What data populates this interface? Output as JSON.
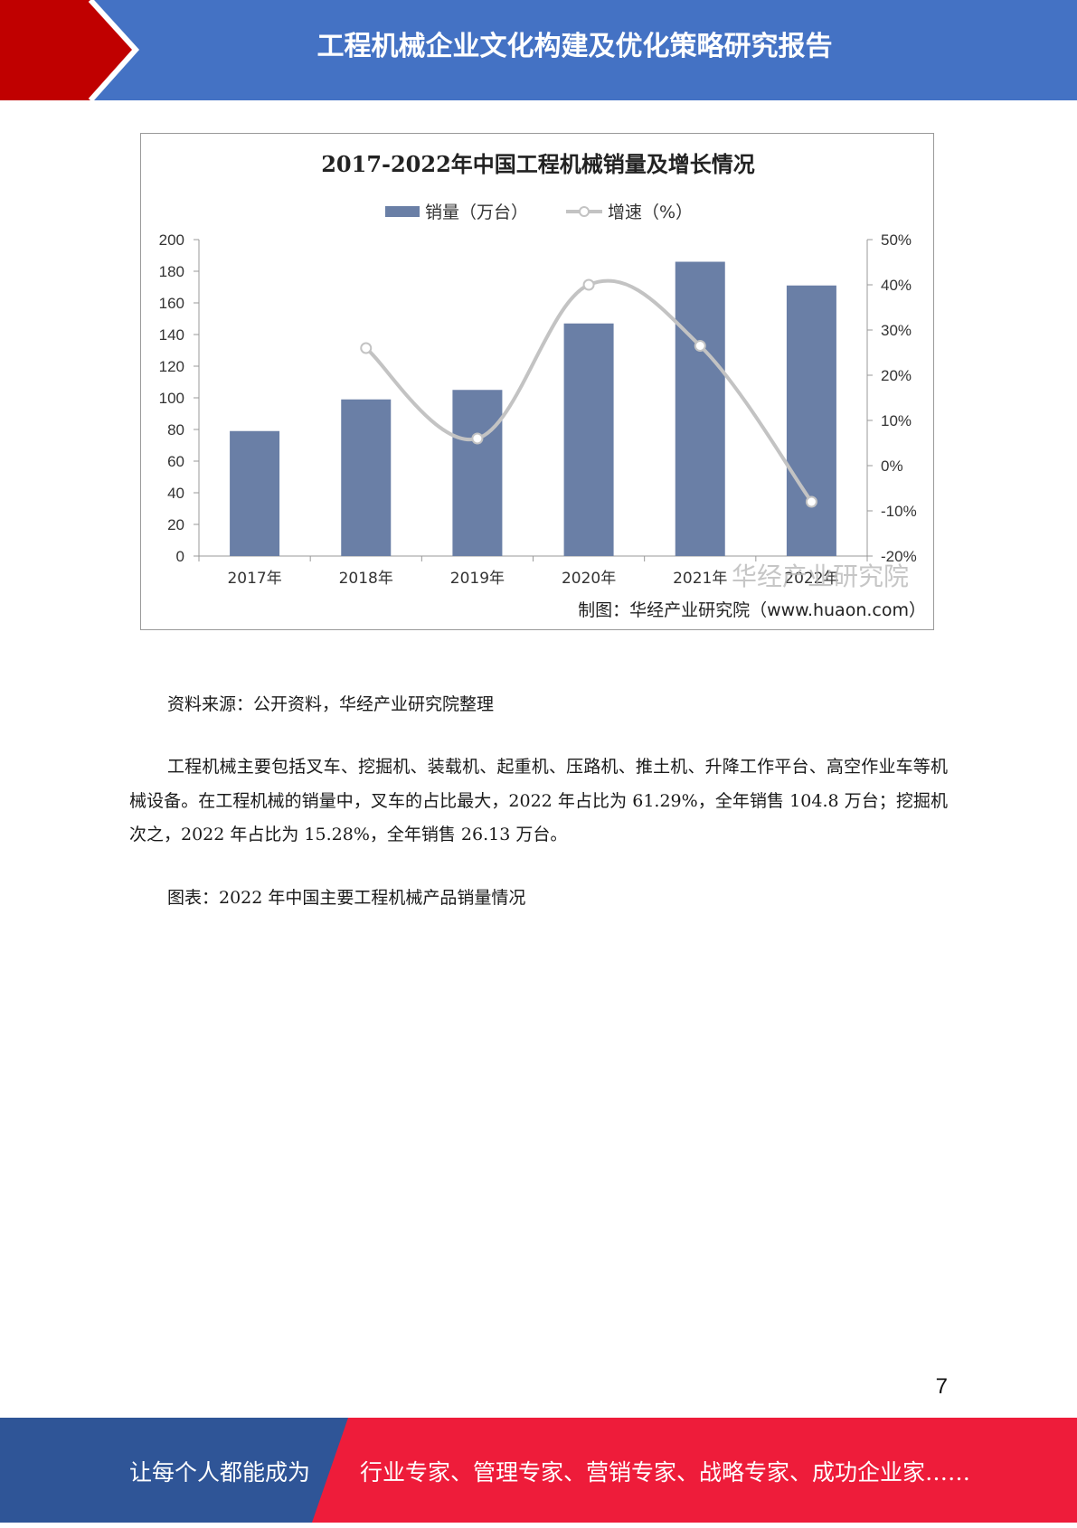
{
  "header": {
    "title": "工程机械企业文化构建及优化策略研究报告"
  },
  "chart_data": {
    "type": "bar",
    "title": "2017-2022年中国工程机械销量及增长情况",
    "categories": [
      "2017年",
      "2018年",
      "2019年",
      "2020年",
      "2021年",
      "2022年"
    ],
    "series": [
      {
        "name": "销量（万台）",
        "type": "bar",
        "axis": "left",
        "color": "#6a7fa6",
        "values": [
          79,
          99,
          105,
          147,
          186,
          171
        ]
      },
      {
        "name": "增速（%）",
        "type": "line",
        "axis": "right",
        "color": "#c3c3c3",
        "values": [
          null,
          26,
          6,
          40,
          26.5,
          -8
        ]
      }
    ],
    "y_left": {
      "min": 0,
      "max": 200,
      "ticks": [
        "0",
        "20",
        "40",
        "60",
        "80",
        "100",
        "120",
        "140",
        "160",
        "180",
        "200"
      ]
    },
    "y_right": {
      "min": -20,
      "max": 50,
      "ticks": [
        "-20%",
        "-10%",
        "0%",
        "10%",
        "20%",
        "30%",
        "40%",
        "50%"
      ]
    },
    "legend_position": "top",
    "grid": false,
    "watermark": "华经产业研究院",
    "credit": "制图：华经产业研究院（www.huaon.com）"
  },
  "text": {
    "source": "资料来源：公开资料，华经产业研究院整理",
    "body": "工程机械主要包括叉车、挖掘机、装载机、起重机、压路机、推土机、升降工作平台、高空作业车等机械设备。在工程机械的销量中，叉车的占比最大，2022 年占比为 61.29%，全年销售 104.8 万台；挖掘机次之，2022 年占比为 15.28%，全年销售 26.13 万台。",
    "figure_caption": "图表：2022 年中国主要工程机械产品销量情况"
  },
  "page_number": "7",
  "footer": {
    "left": "让每个人都能成为",
    "right": "行业专家、管理专家、营销专家、战略专家、成功企业家……"
  },
  "colors": {
    "header_blue": "#4472c4",
    "header_red": "#c00000",
    "footer_blue": "#2f5597",
    "footer_red": "#ee1c3a"
  }
}
